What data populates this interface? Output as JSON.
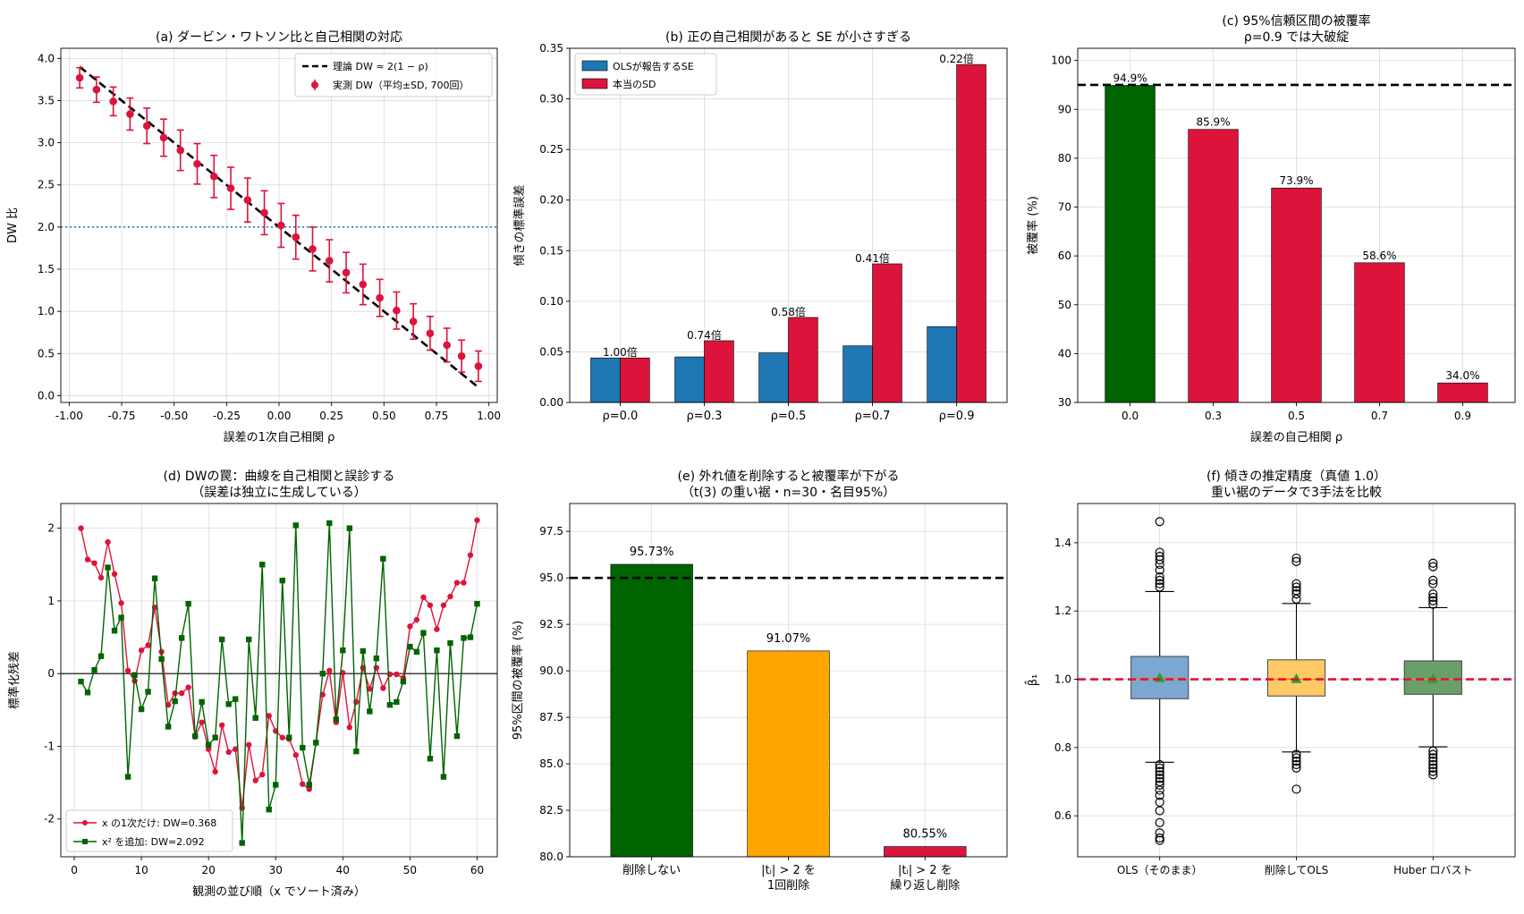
{
  "chart_data": [
    {
      "id": "a",
      "type": "line",
      "title": "(a) ダービン・ワトソン比と自己相関の対応",
      "xlabel": "誤差の1次自己相関 ρ",
      "ylabel": "DW 比",
      "xlim": [
        -1.04,
        1.04
      ],
      "ylim": [
        -0.08,
        4.12
      ],
      "xticks": [
        -1.0,
        -0.75,
        -0.5,
        -0.25,
        0.0,
        0.25,
        0.5,
        0.75,
        1.0
      ],
      "xtick_labels": [
        "-1.00",
        "-0.75",
        "-0.50",
        "-0.25",
        "0.00",
        "0.25",
        "0.50",
        "0.75",
        "1.00"
      ],
      "yticks": [
        0.0,
        0.5,
        1.0,
        1.5,
        2.0,
        2.5,
        3.0,
        3.5,
        4.0
      ],
      "ytick_labels": [
        "0.0",
        "0.5",
        "1.0",
        "1.5",
        "2.0",
        "2.5",
        "3.0",
        "3.5",
        "4.0"
      ],
      "grid": true,
      "legend_position": "top-right",
      "reference_line": {
        "y": 2.0,
        "style": "dotted",
        "color": "#1f77b4"
      },
      "theory": {
        "name": "理論 DW ≈ 2(1 − ρ)",
        "x": [
          -0.95,
          0.95
        ],
        "y": [
          3.9,
          0.1
        ],
        "color": "#000000"
      },
      "series": [
        {
          "name": "実測 DW（平均±SD, 700回）",
          "color": "#dc143c",
          "x": [
            -0.95,
            -0.87,
            -0.79,
            -0.71,
            -0.63,
            -0.55,
            -0.47,
            -0.39,
            -0.31,
            -0.23,
            -0.15,
            -0.07,
            0.01,
            0.08,
            0.16,
            0.24,
            0.32,
            0.4,
            0.48,
            0.56,
            0.64,
            0.72,
            0.8,
            0.87,
            0.95
          ],
          "y": [
            3.77,
            3.63,
            3.49,
            3.34,
            3.2,
            3.06,
            2.91,
            2.75,
            2.6,
            2.46,
            2.32,
            2.17,
            2.02,
            1.88,
            1.74,
            1.6,
            1.46,
            1.32,
            1.16,
            1.01,
            0.88,
            0.74,
            0.6,
            0.47,
            0.35
          ],
          "err": [
            0.12,
            0.15,
            0.17,
            0.19,
            0.21,
            0.22,
            0.24,
            0.24,
            0.25,
            0.25,
            0.26,
            0.26,
            0.26,
            0.26,
            0.26,
            0.25,
            0.24,
            0.24,
            0.22,
            0.22,
            0.21,
            0.2,
            0.2,
            0.19,
            0.18
          ]
        }
      ]
    },
    {
      "id": "b",
      "type": "bar",
      "title": "(b) 正の自己相関があると SE が小さすぎる",
      "xlabel": "",
      "ylabel": "傾きの標準誤差",
      "categories": [
        "ρ=0.0",
        "ρ=0.3",
        "ρ=0.5",
        "ρ=0.7",
        "ρ=0.9"
      ],
      "ylim": [
        0.0,
        0.35
      ],
      "yticks": [
        0.0,
        0.05,
        0.1,
        0.15,
        0.2,
        0.25,
        0.3,
        0.35
      ],
      "ytick_labels": [
        "0.00",
        "0.05",
        "0.10",
        "0.15",
        "0.20",
        "0.25",
        "0.30",
        "0.35"
      ],
      "grid": true,
      "legend_position": "top-left",
      "series": [
        {
          "name": "OLSが報告するSE",
          "color": "#1f77b4",
          "values": [
            0.044,
            0.045,
            0.049,
            0.056,
            0.075
          ]
        },
        {
          "name": "本当のSD",
          "color": "#dc143c",
          "values": [
            0.044,
            0.061,
            0.084,
            0.137,
            0.334
          ]
        }
      ],
      "ratio_labels": [
        "1.00倍",
        "0.74倍",
        "0.58倍",
        "0.41倍",
        "0.22倍"
      ]
    },
    {
      "id": "c",
      "type": "bar",
      "title": [
        "(c) 95%信頼区間の被覆率",
        "ρ=0.9 では大破綻"
      ],
      "xlabel": "誤差の自己相関 ρ",
      "ylabel": "被覆率 (%)",
      "categories": [
        "0.0",
        "0.3",
        "0.5",
        "0.7",
        "0.9"
      ],
      "values": [
        94.9,
        85.9,
        73.9,
        58.6,
        34.0
      ],
      "value_labels": [
        "94.9%",
        "85.9%",
        "73.9%",
        "58.6%",
        "34.0%"
      ],
      "colors": [
        "#006400",
        "#dc143c",
        "#dc143c",
        "#dc143c",
        "#dc143c"
      ],
      "ylim": [
        30,
        102.5
      ],
      "yticks": [
        30,
        40,
        50,
        60,
        70,
        80,
        90,
        100
      ],
      "ytick_labels": [
        "30",
        "40",
        "50",
        "60",
        "70",
        "80",
        "90",
        "100"
      ],
      "reference_line": {
        "y": 95,
        "style": "dashed",
        "color": "#000000"
      },
      "grid": true
    },
    {
      "id": "d",
      "type": "line",
      "title": [
        "(d) DWの罠：曲線を自己相関と誤診する",
        "（誤差は独立に生成している）"
      ],
      "xlabel": "観測の並び順（x でソート済み）",
      "ylabel": "標準化残差",
      "xlim": [
        -2.0,
        63.0
      ],
      "ylim": [
        -2.52,
        2.34
      ],
      "xticks": [
        0,
        10,
        20,
        30,
        40,
        50,
        60
      ],
      "xtick_labels": [
        "0",
        "10",
        "20",
        "30",
        "40",
        "50",
        "60"
      ],
      "yticks": [
        -2,
        -1,
        0,
        1,
        2
      ],
      "ytick_labels": [
        "-2",
        "-1",
        "0",
        "1",
        "2"
      ],
      "reference_line": {
        "y": 0,
        "style": "solid",
        "color": "#000000"
      },
      "grid": true,
      "legend_position": "bottom-left",
      "series": [
        {
          "name": "x の1次だけ: DW=0.368",
          "color": "#dc143c",
          "marker": "circle",
          "x": [
            1,
            2,
            3,
            4,
            5,
            6,
            7,
            8,
            9,
            10,
            11,
            12,
            13,
            14,
            15,
            16,
            17,
            18,
            19,
            20,
            21,
            22,
            23,
            24,
            25,
            26,
            27,
            28,
            29,
            30,
            31,
            32,
            33,
            34,
            35,
            36,
            37,
            38,
            39,
            40,
            41,
            42,
            43,
            44,
            45,
            46,
            47,
            48,
            49,
            50,
            51,
            52,
            53,
            54,
            55,
            56,
            57,
            58,
            59,
            60
          ],
          "y": [
            2.0,
            1.57,
            1.52,
            1.32,
            1.81,
            1.37,
            0.97,
            0.04,
            -0.1,
            0.32,
            0.39,
            0.91,
            0.3,
            -0.43,
            -0.27,
            -0.27,
            -0.19,
            -0.87,
            -0.67,
            -1.04,
            -1.35,
            -0.71,
            -1.08,
            -1.04,
            -1.85,
            -0.98,
            -1.47,
            -1.39,
            -0.58,
            -0.79,
            -0.88,
            -0.9,
            -1.12,
            -1.52,
            -1.59,
            -0.95,
            -0.29,
            0.04,
            -0.67,
            0.01,
            -0.74,
            -0.39,
            0.08,
            -0.21,
            0.08,
            -0.2,
            -0.01,
            -0.01,
            -0.06,
            0.65,
            0.74,
            1.05,
            0.94,
            0.61,
            0.94,
            1.06,
            1.25,
            1.25,
            1.63,
            2.11
          ]
        },
        {
          "name": "x² を追加: DW=2.092",
          "color": "#006400",
          "marker": "square",
          "x": [
            1,
            2,
            3,
            4,
            5,
            6,
            7,
            8,
            9,
            10,
            11,
            12,
            13,
            14,
            15,
            16,
            17,
            18,
            19,
            20,
            21,
            22,
            23,
            24,
            25,
            26,
            27,
            28,
            29,
            30,
            31,
            32,
            33,
            34,
            35,
            36,
            37,
            38,
            39,
            40,
            41,
            42,
            43,
            44,
            45,
            46,
            47,
            48,
            49,
            50,
            51,
            52,
            53,
            54,
            55,
            56,
            57,
            58,
            59,
            60
          ],
          "y": [
            -0.11,
            -0.26,
            0.05,
            0.24,
            1.46,
            0.59,
            0.77,
            -1.42,
            -0.02,
            -0.49,
            -0.25,
            1.31,
            0.2,
            -0.73,
            -0.38,
            0.49,
            0.96,
            -0.86,
            -0.39,
            -0.98,
            -0.88,
            0.47,
            -0.42,
            -0.35,
            -2.33,
            0.47,
            -0.61,
            1.5,
            -1.87,
            -1.53,
            1.28,
            -0.88,
            2.04,
            -1.02,
            -1.53,
            -0.95,
            0.0,
            2.07,
            -0.63,
            0.32,
            2.0,
            -1.07,
            0.31,
            -0.52,
            0.21,
            1.58,
            -0.43,
            -0.39,
            -0.11,
            0.37,
            0.3,
            0.56,
            -1.17,
            0.32,
            -1.42,
            0.42,
            -0.86,
            0.49,
            0.5,
            0.96
          ]
        }
      ]
    },
    {
      "id": "e",
      "type": "bar",
      "title": [
        "(e) 外れ値を削除すると被覆率が下がる",
        "（t(3) の重い裾・n=30・名目95%）"
      ],
      "xlabel": "",
      "ylabel": "95%区間の被覆率 (%)",
      "categories": [
        "削除しない",
        "|tᵢ| > 2 を\n1回削除",
        "|tᵢ| > 2 を\n繰り返し削除"
      ],
      "values": [
        95.73,
        91.07,
        80.55
      ],
      "value_labels": [
        "95.73%",
        "91.07%",
        "80.55%"
      ],
      "colors": [
        "#006400",
        "#ffa500",
        "#dc143c"
      ],
      "ylim": [
        80.0,
        99.0
      ],
      "yticks": [
        80.0,
        82.5,
        85.0,
        87.5,
        90.0,
        92.5,
        95.0,
        97.5
      ],
      "ytick_labels": [
        "80.0",
        "82.5",
        "85.0",
        "87.5",
        "90.0",
        "92.5",
        "95.0",
        "97.5"
      ],
      "reference_line": {
        "y": 95,
        "style": "dashed",
        "color": "#000000"
      },
      "grid": true
    },
    {
      "id": "f",
      "type": "box",
      "title": [
        "(f) 傾きの推定精度（真値 1.0）",
        "重い裾のデータで3手法を比較"
      ],
      "xlabel": "",
      "ylabel": "β̂₁",
      "categories": [
        "OLS（そのまま）",
        "削除してOLS",
        "Huber ロバスト"
      ],
      "ylim": [
        0.48,
        1.515
      ],
      "yticks": [
        0.6,
        0.8,
        1.0,
        1.2,
        1.4
      ],
      "ytick_labels": [
        "0.6",
        "0.8",
        "1.0",
        "1.2",
        "1.4"
      ],
      "reference_line": {
        "y": 1.0,
        "style": "dashed",
        "color": "#dc143c"
      },
      "grid": true,
      "boxes": [
        {
          "color": "#7ba7d3",
          "q1": 0.943,
          "median": 1.003,
          "q3": 1.067,
          "mean": 1.005,
          "whisker_low": 0.757,
          "whisker_high": 1.257,
          "fliers": [
            1.462,
            1.372,
            1.36,
            1.35,
            1.337,
            1.32,
            1.3,
            1.29,
            1.28,
            1.27,
            0.75,
            0.74,
            0.73,
            0.72,
            0.71,
            0.7,
            0.69,
            0.675,
            0.66,
            0.64,
            0.615,
            0.58,
            0.55,
            0.535,
            0.528
          ]
        },
        {
          "color": "#ffc966",
          "q1": 0.951,
          "median": 1.0,
          "q3": 1.057,
          "mean": 1.002,
          "whisker_low": 0.787,
          "whisker_high": 1.222,
          "fliers": [
            1.355,
            1.345,
            1.28,
            1.27,
            1.26,
            1.25,
            1.235,
            0.78,
            0.77,
            0.76,
            0.75,
            0.74,
            0.678
          ]
        },
        {
          "color": "#6a9e6a",
          "q1": 0.956,
          "median": 1.0,
          "q3": 1.054,
          "mean": 1.002,
          "whisker_low": 0.802,
          "whisker_high": 1.21,
          "fliers": [
            1.34,
            1.33,
            1.29,
            1.28,
            1.25,
            1.24,
            1.23,
            1.22,
            0.79,
            0.78,
            0.77,
            0.76,
            0.75,
            0.74,
            0.73,
            0.72
          ]
        }
      ]
    }
  ]
}
